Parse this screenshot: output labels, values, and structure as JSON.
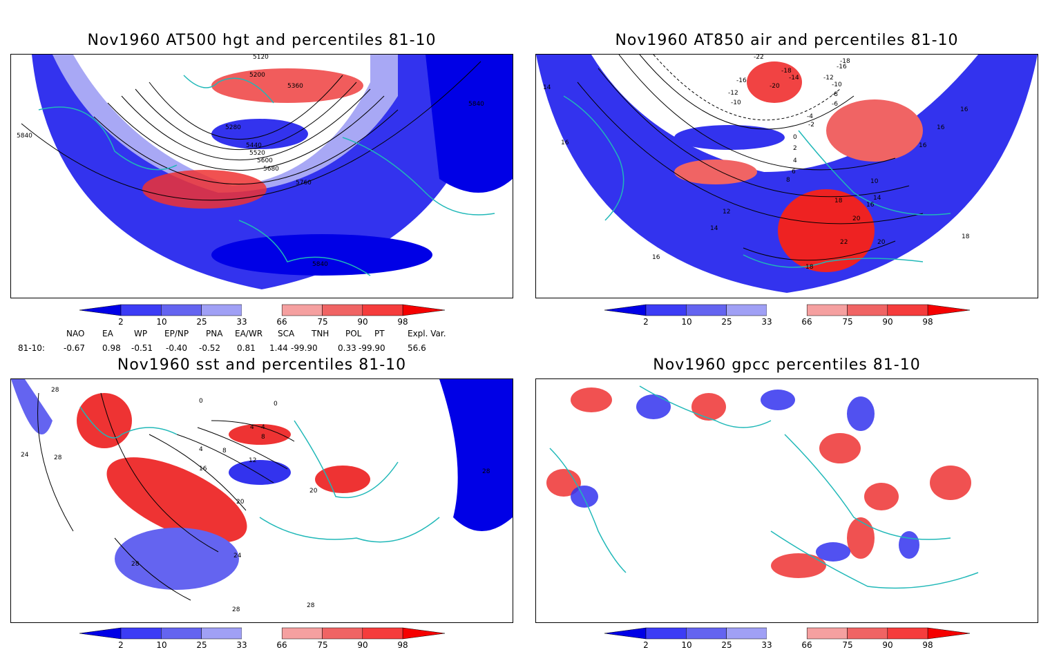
{
  "panels": [
    {
      "title": "Nov1960 AT500 hgt and percentiles 81-10",
      "contour_labels": [
        "5120",
        "5200",
        "5360",
        "5280",
        "5440",
        "5520",
        "5600",
        "5680",
        "5760",
        "5840",
        "5840",
        "5840"
      ]
    },
    {
      "title": "Nov1960 AT850 air and percentiles 81-10",
      "contour_labels": [
        "-22",
        "-18",
        "-16",
        "-18",
        "-20",
        "-14",
        "-12",
        "-16",
        "-10",
        "-8",
        "-12",
        "-10",
        "-6",
        "-4",
        "-2",
        "0",
        "2",
        "4",
        "6",
        "8",
        "10",
        "12",
        "14",
        "16",
        "16",
        "16",
        "18",
        "20",
        "22",
        "20",
        "18",
        "14",
        "16",
        "16",
        "18",
        "16",
        "14"
      ]
    },
    {
      "title": "Nov1960 sst and percentiles 81-10",
      "contour_labels": [
        "28",
        "24",
        "28",
        "0",
        "0",
        "4",
        "4",
        "8",
        "4",
        "8",
        "12",
        "16",
        "20",
        "20",
        "24",
        "28",
        "28",
        "28",
        "28"
      ]
    },
    {
      "title": "Nov1960 gpcc percentiles 81-10",
      "contour_labels": []
    }
  ],
  "colorbar": {
    "ticks": [
      "2",
      "10",
      "25",
      "33",
      "66",
      "75",
      "90",
      "98"
    ],
    "colors": [
      "#0000e6",
      "#3c3cf5",
      "#6464f0",
      "#a0a0f5",
      "#ffffff",
      "#f5a0a0",
      "#f06464",
      "#f53c3c",
      "#f50000"
    ]
  },
  "indices": {
    "header": [
      "NAO",
      "EA",
      "WP",
      "EP/NP",
      "PNA",
      "EA/WR",
      "SCA",
      "TNH",
      "POL",
      "PT",
      "Expl. Var."
    ],
    "row_label": "81-10:",
    "values": [
      "-0.67",
      "0.98",
      "-0.51",
      "-0.40",
      "-0.52",
      "0.81",
      "1.44",
      "-99.90",
      "0.33",
      "-99.90",
      "56.6"
    ]
  },
  "colors": {
    "coast": "#20b8b8",
    "blue": "#1e1ee8",
    "red": "#ee2222"
  }
}
